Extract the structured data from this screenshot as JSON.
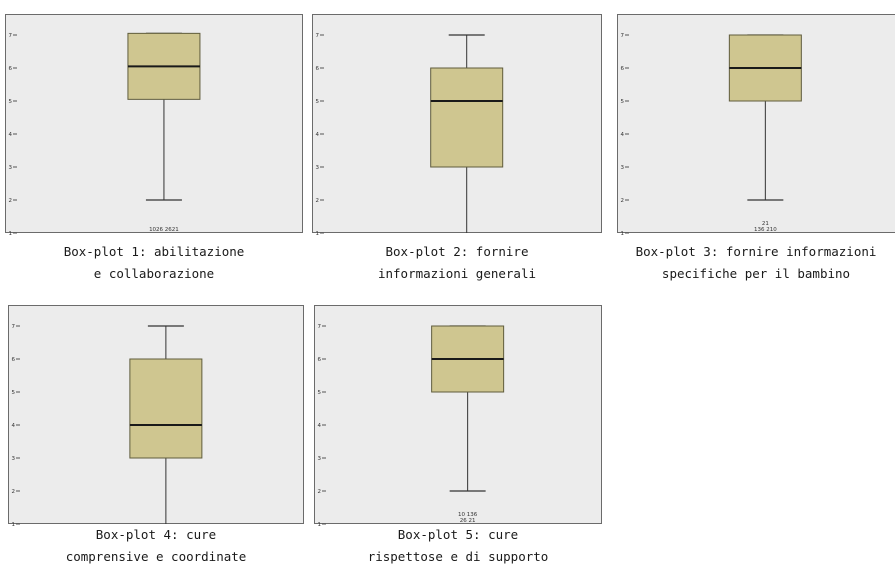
{
  "colors": {
    "plot_background": "#ececec",
    "box_fill": "#cfc690",
    "box_stroke": "#5f5c3c",
    "median": "#1a1a1a",
    "whisker": "#333333",
    "frame": "#6b6b6b"
  },
  "chart_data": [
    {
      "type": "boxplot",
      "caption_line1": "Box-plot 1: abilitazione",
      "caption_line2": "e collaborazione",
      "yticks": [
        "1",
        "2",
        "3",
        "4",
        "5",
        "6",
        "7"
      ],
      "ylim": [
        1,
        7
      ],
      "whisker_low": 2,
      "q1": 5.05,
      "median": 6.05,
      "q3": 7.05,
      "whisker_high": 7.05,
      "outlier_labels": [
        "1026 2621"
      ]
    },
    {
      "type": "boxplot",
      "caption_line1": "Box-plot 2: fornire",
      "caption_line2": "informazioni generali",
      "yticks": [
        "1",
        "2",
        "3",
        "4",
        "5",
        "6",
        "7"
      ],
      "ylim": [
        1,
        7
      ],
      "whisker_low": 1,
      "q1": 3,
      "median": 5,
      "q3": 6,
      "whisker_high": 7,
      "outlier_labels": []
    },
    {
      "type": "boxplot",
      "caption_line1": "Box-plot 3: fornire informazioni",
      "caption_line2": "specifiche per il bambino",
      "yticks": [
        "1",
        "2",
        "3",
        "4",
        "5",
        "6",
        "7"
      ],
      "ylim": [
        1,
        7
      ],
      "whisker_low": 2,
      "q1": 5,
      "median": 6,
      "q3": 7,
      "whisker_high": 7,
      "outlier_labels": [
        "21",
        "136 210"
      ]
    },
    {
      "type": "boxplot",
      "caption_line1": "Box-plot 4: cure",
      "caption_line2": "comprensive e coordinate",
      "yticks": [
        "1",
        "2",
        "3",
        "4",
        "5",
        "6",
        "7"
      ],
      "ylim": [
        1,
        7
      ],
      "whisker_low": 1,
      "q1": 3,
      "median": 4,
      "q3": 6,
      "whisker_high": 7,
      "outlier_labels": []
    },
    {
      "type": "boxplot",
      "caption_line1": "Box-plot 5: cure",
      "caption_line2": "rispettose e di supporto",
      "yticks": [
        "1",
        "2",
        "3",
        "4",
        "5",
        "6",
        "7"
      ],
      "ylim": [
        1,
        7
      ],
      "whisker_low": 2,
      "q1": 5,
      "median": 6,
      "q3": 7,
      "whisker_high": 7,
      "outlier_labels": [
        "10 136",
        "26 21"
      ]
    }
  ]
}
